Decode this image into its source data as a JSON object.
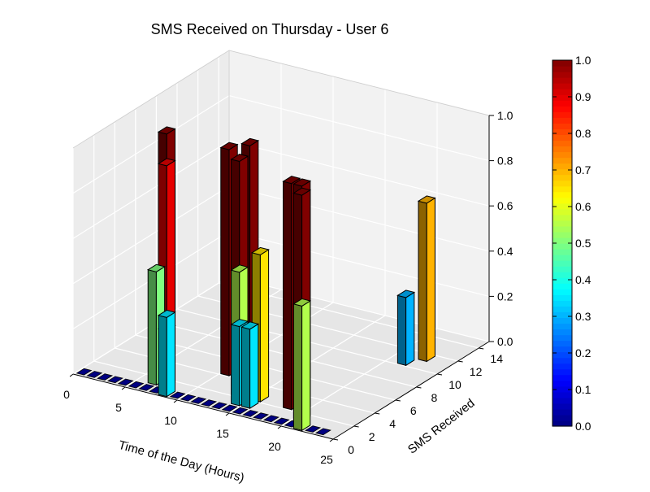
{
  "chart_data": {
    "type": "bar3d",
    "title": "SMS Received on Thursday - User 6",
    "xlabel": "Time of the Day (Hours)",
    "ylabel": "SMS Received",
    "x_ticks": [
      "0",
      "5",
      "10",
      "15",
      "20",
      "25"
    ],
    "y_ticks": [
      "0",
      "2",
      "4",
      "6",
      "8",
      "10",
      "12",
      "14"
    ],
    "z_ticks": [
      "0.0",
      "0.2",
      "0.4",
      "0.6",
      "0.8",
      "1.0"
    ],
    "xlim": [
      0,
      25
    ],
    "ylim": [
      0,
      15
    ],
    "zlim": [
      0,
      1
    ],
    "grid": true,
    "colormap": "jet",
    "colorbar_ticks": [
      "0.0",
      "0.1",
      "0.2",
      "0.3",
      "0.4",
      "0.5",
      "0.6",
      "0.7",
      "0.8",
      "0.9",
      "1.0"
    ],
    "bars": [
      {
        "hour": 4,
        "sms": 4,
        "value": 1.0
      },
      {
        "hour": 5,
        "sms": 3,
        "value": 0.9
      },
      {
        "hour": 6,
        "sms": 1,
        "value": 0.5
      },
      {
        "hour": 7,
        "sms": 1,
        "value": 0.25
      },
      {
        "hour": 8,
        "sms": 0,
        "value": 0.35
      },
      {
        "hour": 10,
        "sms": 4,
        "value": 1.0
      },
      {
        "hour": 11,
        "sms": 5,
        "value": 1.0
      },
      {
        "hour": 12,
        "sms": 3,
        "value": 1.0
      },
      {
        "hour": 13,
        "sms": 2,
        "value": 0.55
      },
      {
        "hour": 14,
        "sms": 1,
        "value": 0.35
      },
      {
        "hour": 15,
        "sms": 2,
        "value": 0.65
      },
      {
        "hour": 15,
        "sms": 1,
        "value": 0.35
      },
      {
        "hour": 18,
        "sms": 2,
        "value": 1.0
      },
      {
        "hour": 19,
        "sms": 2,
        "value": 1.0
      },
      {
        "hour": 20,
        "sms": 1,
        "value": 1.0
      },
      {
        "hour": 21,
        "sms": 0,
        "value": 0.55
      },
      {
        "hour": 21,
        "sms": 10,
        "value": 0.3
      },
      {
        "hour": 22,
        "sms": 11,
        "value": 0.7
      }
    ]
  }
}
